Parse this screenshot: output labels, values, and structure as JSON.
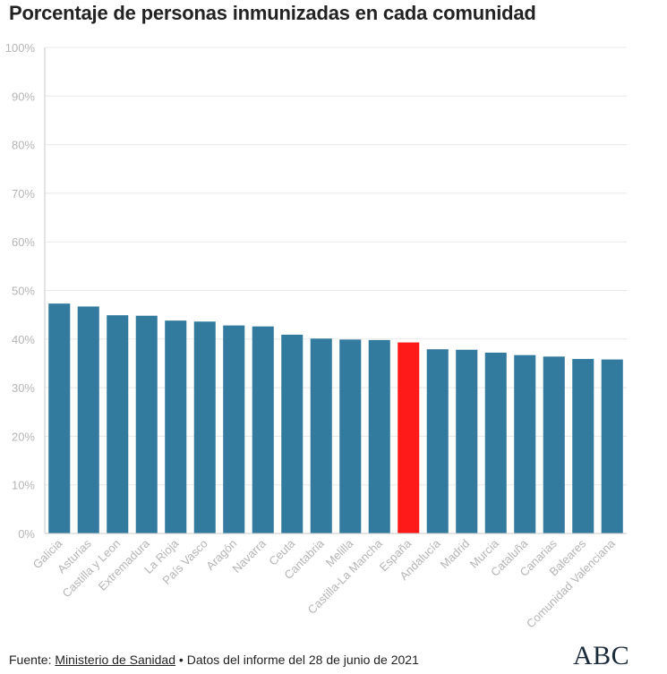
{
  "header": {
    "title": "Porcentaje de personas inmunizadas en cada comunidad"
  },
  "footer": {
    "prefix": "Fuente: ",
    "source": "Ministerio de Sanidad",
    "separator": " • ",
    "note": "Datos del informe del 28 de junio de 2021"
  },
  "logo": "ABC",
  "colors": {
    "bar": "#337a9f",
    "highlight": "#ff1a1a",
    "grid": "#e8e8e8",
    "tick": "#b5b5b5",
    "axis": "#c8c8c8"
  },
  "chart_data": {
    "type": "bar",
    "title": "Porcentaje de personas inmunizadas en cada comunidad",
    "xlabel": "",
    "ylabel": "",
    "ylim": [
      0,
      100
    ],
    "yticks": [
      "0%",
      "10%",
      "20%",
      "30%",
      "40%",
      "50%",
      "60%",
      "70%",
      "80%",
      "90%",
      "100%"
    ],
    "grid": true,
    "highlight": "España",
    "categories": [
      "Galicia",
      "Asturias",
      "Castilla y Leon",
      "Extremadura",
      "La Rioja",
      "País Vasco",
      "Aragón",
      "Navarra",
      "Ceuta",
      "Cantabria",
      "Melilla",
      "Castilla-La Mancha",
      "España",
      "Andalucía",
      "Madrid",
      "Murcia",
      "Cataluña",
      "Canarias",
      "Baleares",
      "Comunidad Valenciana"
    ],
    "values": [
      47.3,
      46.7,
      44.9,
      44.8,
      43.8,
      43.6,
      42.8,
      42.6,
      40.9,
      40.1,
      39.9,
      39.8,
      39.3,
      37.9,
      37.8,
      37.2,
      36.7,
      36.4,
      35.9,
      35.8
    ]
  }
}
